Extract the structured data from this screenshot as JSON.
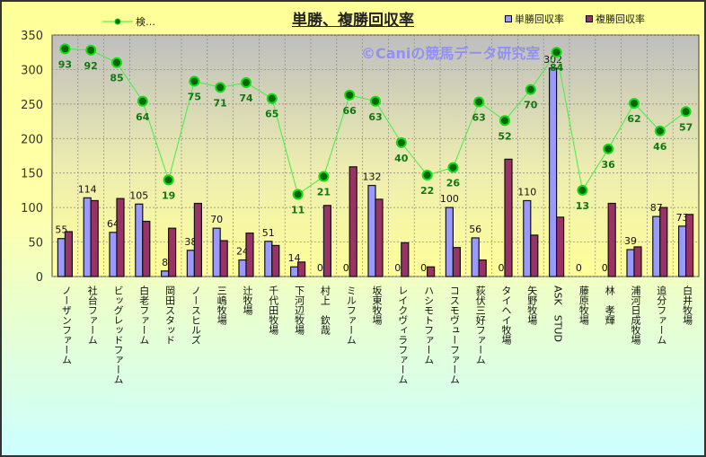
{
  "chart_data": {
    "type": "bar",
    "title": "単勝、複勝回収率",
    "watermark": "©Caniの競馬データ研究室",
    "ylim": [
      0,
      350
    ],
    "yticks": [
      0,
      50,
      100,
      150,
      200,
      250,
      300,
      350
    ],
    "grid": true,
    "legend_position": "top",
    "categories": [
      "ノーザンファーム",
      "社台ファーム",
      "ビッグレッドファーム",
      "白老ファーム",
      "岡田スタッド",
      "ノースヒルズ",
      "三嶋牧場",
      "辻牧場",
      "千代田牧場",
      "下河辺牧場",
      "村上　欽哉",
      "ミルファーム",
      "坂東牧場",
      "レイクヴィラファーム",
      "ハシモトファーム",
      "コスモヴューファーム",
      "荻伏三好ファーム",
      "タイヘイ牧場",
      "矢野牧場",
      "ASK　STUD",
      "藤原牧場",
      "林　孝輝",
      "浦河日成牧場",
      "追分ファーム",
      "白井牧場"
    ],
    "series": [
      {
        "name": "単勝回収率",
        "color": "#9999FF",
        "values": [
          55,
          114,
          64,
          105,
          8,
          38,
          70,
          24,
          51,
          14,
          0,
          0,
          132,
          0,
          0,
          100,
          56,
          0,
          110,
          302,
          0,
          0,
          39,
          87,
          73
        ]
      },
      {
        "name": "複勝回収率",
        "color": "#993366",
        "values": [
          65,
          110,
          113,
          80,
          70,
          106,
          52,
          63,
          45,
          21,
          103,
          159,
          112,
          49,
          14,
          42,
          24,
          170,
          60,
          86,
          0,
          106,
          43,
          100,
          90
        ]
      }
    ],
    "line_series": {
      "name": "検…",
      "color": "#00CC00",
      "labels": [
        93,
        92,
        85,
        64,
        19,
        75,
        71,
        74,
        65,
        11,
        21,
        66,
        63,
        40,
        22,
        26,
        63,
        52,
        70,
        84,
        13,
        36,
        62,
        46,
        57
      ],
      "plot_values": [
        330,
        328,
        310,
        254,
        140,
        283,
        274,
        281,
        258,
        119,
        145,
        263,
        254,
        194,
        147,
        158,
        253,
        226,
        271,
        325,
        125,
        185,
        251,
        211,
        239
      ]
    }
  }
}
